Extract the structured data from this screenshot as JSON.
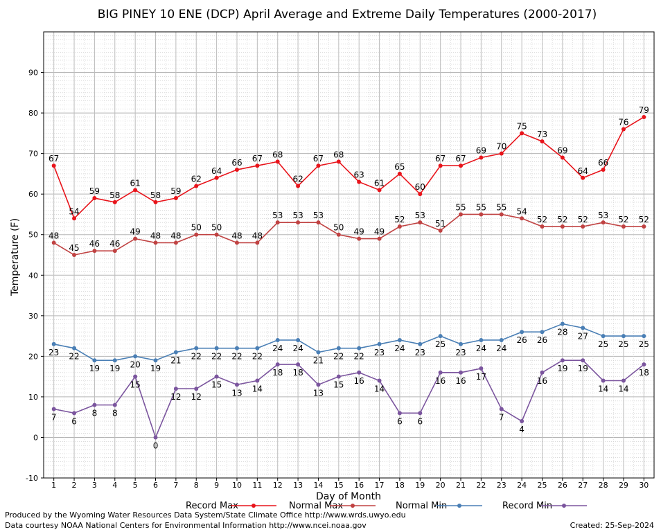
{
  "chart_data": {
    "type": "line",
    "title": "BIG PINEY 10 ENE (DCP) April Average and Extreme Daily Temperatures (2000-2017)",
    "xlabel": "Day of Month",
    "ylabel": "Temperature (F)",
    "x": [
      1,
      2,
      3,
      4,
      5,
      6,
      7,
      8,
      9,
      10,
      11,
      12,
      13,
      14,
      15,
      16,
      17,
      18,
      19,
      20,
      21,
      22,
      23,
      24,
      25,
      26,
      27,
      28,
      29,
      30
    ],
    "ylim": [
      -10,
      100
    ],
    "yticks": [
      -10,
      0,
      10,
      20,
      30,
      40,
      50,
      60,
      70,
      80,
      90
    ],
    "grid": true,
    "legend_position": "bottom",
    "series": [
      {
        "name": "Record Max",
        "color": "#e8141b",
        "label_position": "above",
        "values": [
          67,
          54,
          59,
          58,
          61,
          58,
          59,
          62,
          64,
          66,
          67,
          68,
          62,
          67,
          68,
          63,
          61,
          65,
          60,
          67,
          67,
          69,
          70,
          75,
          73,
          69,
          64,
          66,
          76,
          79
        ]
      },
      {
        "name": "Normal Max",
        "color": "#c04242",
        "label_position": "above",
        "values": [
          48,
          45,
          46,
          46,
          49,
          48,
          48,
          50,
          50,
          48,
          48,
          53,
          53,
          53,
          50,
          49,
          49,
          52,
          53,
          51,
          55,
          55,
          55,
          54,
          52,
          52,
          52,
          53,
          52,
          52
        ]
      },
      {
        "name": "Normal Min",
        "color": "#4a7fb5",
        "label_position": "below",
        "values": [
          23,
          22,
          19,
          19,
          20,
          19,
          21,
          22,
          22,
          22,
          22,
          24,
          24,
          21,
          22,
          22,
          23,
          24,
          23,
          25,
          23,
          24,
          24,
          26,
          26,
          28,
          27,
          25,
          25,
          25
        ]
      },
      {
        "name": "Record Min",
        "color": "#7b559e",
        "label_position": "below",
        "values": [
          7,
          6,
          8,
          8,
          15,
          0,
          12,
          12,
          15,
          13,
          14,
          18,
          18,
          13,
          15,
          16,
          14,
          6,
          6,
          16,
          16,
          17,
          7,
          4,
          16,
          19,
          19,
          14,
          14,
          18
        ]
      }
    ]
  },
  "footer": {
    "produced_by": "Produced by the Wyoming Water Resources Data System/State Climate Office http://www.wrds.uwyo.edu",
    "courtesy": "Data courtesy NOAA National Centers for Environmental Information http://www.ncei.noaa.gov",
    "created": "Created:  25-Sep-2024"
  }
}
